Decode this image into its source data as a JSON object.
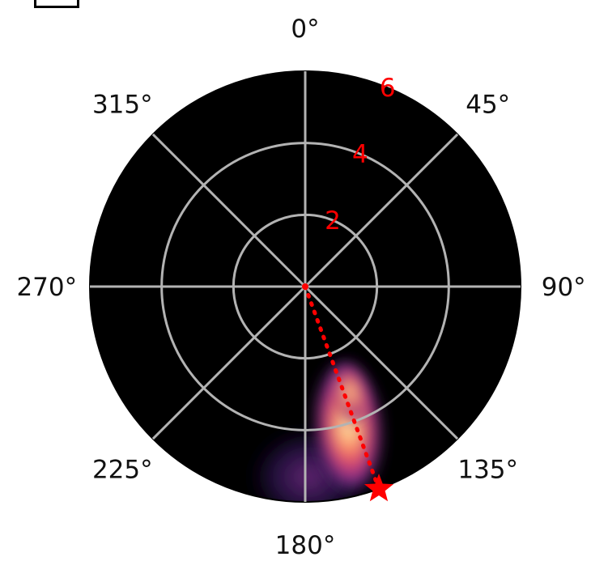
{
  "chart_data": {
    "type": "polar-heatmap",
    "angular_axis": {
      "zero_location": "top",
      "direction": "clockwise",
      "tick_labels": [
        "0°",
        "45°",
        "90°",
        "135°",
        "180°",
        "225°",
        "270°",
        "315°"
      ],
      "tick_values_deg": [
        0,
        45,
        90,
        135,
        180,
        225,
        270,
        315
      ]
    },
    "radial_axis": {
      "rmax": 6,
      "tick_values": [
        2,
        4,
        6
      ],
      "tick_labels": [
        "2",
        "4",
        "6"
      ],
      "tick_label_angle_deg": 22.5,
      "tick_label_color": "#ff0000"
    },
    "grid": true,
    "background_color": "#000000",
    "grid_color": "#b3b3b3",
    "colormap": "magma",
    "density": {
      "peak_theta_deg": 157,
      "peak_r": 3.2,
      "extent_theta_deg": [
        145,
        185
      ],
      "extent_r": [
        2.2,
        6
      ]
    },
    "marker": {
      "symbol": "star",
      "theta_deg": 160,
      "r": 6.0,
      "color": "#ff0000",
      "line_style": "dotted",
      "line_from": {
        "theta_deg": 0,
        "r": 0
      }
    }
  }
}
